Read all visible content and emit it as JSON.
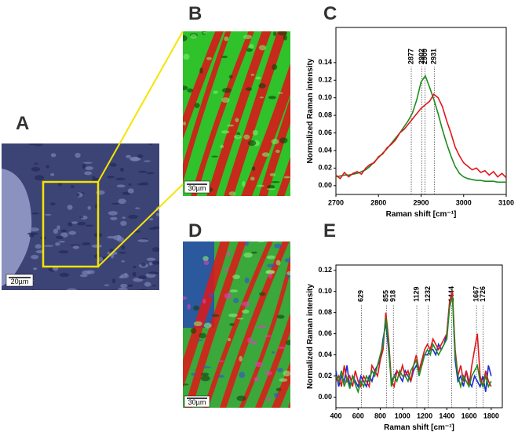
{
  "figure": {
    "panel_labels": [
      "A",
      "B",
      "C",
      "D",
      "E"
    ],
    "scale_bars": [
      "20µm",
      "30µm",
      "30µm"
    ]
  },
  "chart_data": [
    {
      "type": "line",
      "ylabel": "Normalized Raman intensity",
      "xlabel": "Raman shift [cm⁻¹]",
      "x": [
        2700,
        2710,
        2720,
        2730,
        2740,
        2750,
        2760,
        2770,
        2780,
        2790,
        2800,
        2810,
        2820,
        2830,
        2840,
        2850,
        2860,
        2870,
        2880,
        2890,
        2900,
        2910,
        2920,
        2930,
        2940,
        2950,
        2960,
        2970,
        2980,
        2990,
        3000,
        3010,
        3020,
        3030,
        3040,
        3050,
        3060,
        3070,
        3080,
        3090,
        3100
      ],
      "series": [
        {
          "color": "#1e8c1e",
          "values": [
            0.01,
            0.011,
            0.012,
            0.012,
            0.013,
            0.014,
            0.016,
            0.018,
            0.022,
            0.027,
            0.032,
            0.037,
            0.042,
            0.048,
            0.054,
            0.06,
            0.067,
            0.074,
            0.083,
            0.098,
            0.118,
            0.125,
            0.112,
            0.098,
            0.082,
            0.064,
            0.048,
            0.034,
            0.022,
            0.014,
            0.01,
            0.008,
            0.007,
            0.006,
            0.006,
            0.005,
            0.005,
            0.005,
            0.004,
            0.004,
            0.004
          ]
        },
        {
          "color": "#e0161b",
          "values": [
            0.012,
            0.008,
            0.015,
            0.01,
            0.014,
            0.016,
            0.013,
            0.02,
            0.024,
            0.026,
            0.033,
            0.036,
            0.043,
            0.047,
            0.052,
            0.06,
            0.064,
            0.07,
            0.076,
            0.082,
            0.088,
            0.092,
            0.096,
            0.104,
            0.1,
            0.09,
            0.074,
            0.06,
            0.044,
            0.034,
            0.026,
            0.022,
            0.018,
            0.02,
            0.015,
            0.017,
            0.012,
            0.016,
            0.01,
            0.014,
            0.009
          ]
        }
      ],
      "peaks": [
        2877,
        2902,
        2909,
        2931
      ],
      "xlim": [
        2700,
        3100
      ],
      "xticks": [
        2700,
        2800,
        2900,
        3000,
        3100
      ],
      "ylim": [
        -0.01,
        0.18
      ],
      "yticks": [
        {
          "value": 0,
          "label": "0.00"
        },
        {
          "value": 0.02,
          "label": "0.02"
        },
        {
          "value": 0.04,
          "label": "0.04"
        },
        {
          "value": 0.06,
          "label": "0.06"
        },
        {
          "value": 0.08,
          "label": "0.08"
        },
        {
          "value": 0.1,
          "label": "0.10"
        },
        {
          "value": 0.12,
          "label": "0.12"
        },
        {
          "value": 0.14,
          "label": "0.14"
        }
      ]
    },
    {
      "type": "line",
      "ylabel": "Normalized Raman intensity",
      "xlabel": "Raman shift [cm⁻¹]",
      "x": [
        400,
        425,
        450,
        475,
        500,
        525,
        550,
        575,
        600,
        625,
        650,
        675,
        700,
        725,
        750,
        775,
        800,
        825,
        850,
        875,
        900,
        925,
        950,
        975,
        1000,
        1025,
        1050,
        1075,
        1100,
        1125,
        1150,
        1175,
        1200,
        1225,
        1250,
        1275,
        1300,
        1325,
        1350,
        1375,
        1400,
        1425,
        1450,
        1475,
        1500,
        1525,
        1550,
        1575,
        1600,
        1625,
        1650,
        1675,
        1700,
        1725,
        1750,
        1775,
        1800
      ],
      "series": [
        {
          "color": "#1a2bd6",
          "values": [
            0.025,
            0.01,
            0.02,
            0.015,
            0.03,
            0.01,
            0.02,
            0.015,
            0.01,
            0.02,
            0.015,
            0.01,
            0.02,
            0.015,
            0.025,
            0.03,
            0.035,
            0.055,
            0.07,
            0.045,
            0.015,
            0.02,
            0.025,
            0.02,
            0.015,
            0.025,
            0.02,
            0.015,
            0.025,
            0.03,
            0.025,
            0.035,
            0.04,
            0.04,
            0.045,
            0.045,
            0.04,
            0.05,
            0.045,
            0.05,
            0.06,
            0.09,
            0.1,
            0.035,
            0.015,
            0.02,
            0.01,
            0.025,
            0.015,
            0.01,
            0.02,
            0.015,
            0.01,
            0.02,
            0.005,
            0.03,
            0.02
          ]
        },
        {
          "color": "#e0161b",
          "values": [
            0.015,
            0.02,
            0.01,
            0.03,
            0.015,
            0.02,
            0.01,
            0.025,
            0.015,
            0.01,
            0.02,
            0.015,
            0.01,
            0.03,
            0.025,
            0.02,
            0.035,
            0.045,
            0.08,
            0.055,
            0.015,
            0.01,
            0.025,
            0.02,
            0.03,
            0.02,
            0.025,
            0.015,
            0.03,
            0.04,
            0.025,
            0.035,
            0.045,
            0.05,
            0.045,
            0.055,
            0.05,
            0.045,
            0.05,
            0.055,
            0.06,
            0.09,
            0.1,
            0.045,
            0.02,
            0.03,
            0.015,
            0.025,
            0.01,
            0.03,
            0.045,
            0.06,
            0.02,
            0.01,
            0.025,
            0.015,
            0.01
          ]
        },
        {
          "color": "#1e8c1e",
          "values": [
            0.02,
            0.015,
            0.025,
            0.01,
            0.018,
            0.008,
            0.02,
            0.012,
            0.005,
            0.015,
            0.01,
            0.02,
            0.015,
            0.025,
            0.02,
            0.03,
            0.04,
            0.05,
            0.075,
            0.05,
            0.01,
            0.02,
            0.015,
            0.025,
            0.02,
            0.02,
            0.015,
            0.025,
            0.03,
            0.035,
            0.02,
            0.03,
            0.04,
            0.045,
            0.04,
            0.05,
            0.045,
            0.04,
            0.045,
            0.05,
            0.055,
            0.085,
            0.095,
            0.04,
            0.02,
            0.01,
            0.02,
            0.015,
            0.01,
            0.02,
            0.025,
            0.03,
            0.015,
            0.01,
            0.02,
            0.01,
            0.015
          ]
        }
      ],
      "peaks": [
        629,
        855,
        918,
        1129,
        1232,
        1444,
        1667,
        1726
      ],
      "xlim": [
        400,
        1900
      ],
      "xticks": [
        400,
        600,
        800,
        1000,
        1200,
        1400,
        1600,
        1800
      ],
      "ylim": [
        -0.01,
        0.125
      ],
      "yticks": [
        {
          "value": 0,
          "label": "0.00"
        },
        {
          "value": 0.02,
          "label": "0.02"
        },
        {
          "value": 0.04,
          "label": "0.04"
        },
        {
          "value": 0.06,
          "label": "0.06"
        },
        {
          "value": 0.08,
          "label": "0.08"
        },
        {
          "value": 0.1,
          "label": "0.10"
        },
        {
          "value": 0.12,
          "label": "0.12"
        }
      ]
    }
  ]
}
